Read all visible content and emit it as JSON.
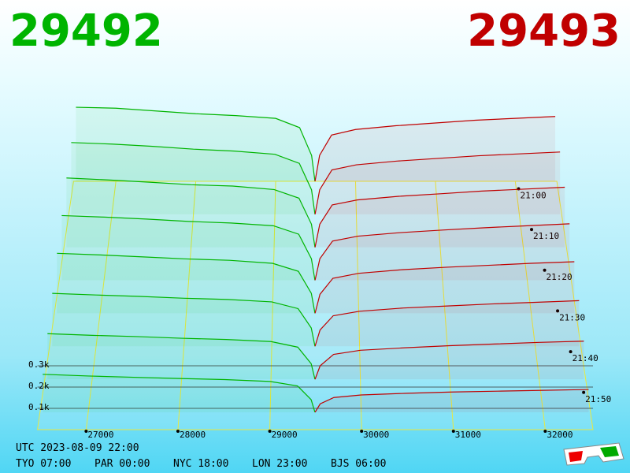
{
  "chart_data": {
    "type": "depth3d",
    "best_bid": 29492,
    "best_ask": 29493,
    "bid_color": "#00b400",
    "ask_color": "#c00000",
    "xlim": [
      26470,
      32520
    ],
    "xticks": [
      27000,
      28000,
      29000,
      30000,
      31000,
      32000
    ],
    "zticks": [
      {
        "value": 100,
        "label": "0.1k"
      },
      {
        "value": 200,
        "label": "0.2k"
      },
      {
        "value": 300,
        "label": "0.3k"
      }
    ],
    "time_ticks": [
      "21:00",
      "21:10",
      "21:20",
      "21:30",
      "21:40",
      "21:50"
    ],
    "bids": {
      "x": [
        26500,
        27000,
        27500,
        28000,
        28500,
        29000,
        29300,
        29450,
        29492
      ],
      "snapshots": [
        [
          400,
          395,
          380,
          365,
          355,
          340,
          290,
          140,
          0
        ],
        [
          380,
          372,
          360,
          345,
          335,
          318,
          270,
          130,
          0
        ],
        [
          360,
          350,
          338,
          325,
          318,
          300,
          255,
          120,
          0
        ],
        [
          330,
          322,
          312,
          300,
          292,
          278,
          235,
          110,
          0
        ],
        [
          300,
          292,
          282,
          272,
          265,
          250,
          210,
          100,
          0
        ],
        [
          260,
          252,
          245,
          236,
          230,
          218,
          185,
          90,
          0
        ],
        [
          220,
          212,
          206,
          198,
          192,
          182,
          155,
          75,
          0
        ],
        [
          180,
          172,
          166,
          160,
          155,
          146,
          125,
          60,
          0
        ]
      ]
    },
    "asks": {
      "x": [
        29493,
        29550,
        29700,
        30000,
        30500,
        31000,
        31500,
        32000,
        32500
      ],
      "snapshots": [
        [
          0,
          140,
          250,
          280,
          300,
          315,
          330,
          340,
          350
        ],
        [
          0,
          130,
          235,
          262,
          282,
          296,
          310,
          320,
          330
        ],
        [
          0,
          120,
          220,
          246,
          265,
          278,
          292,
          302,
          312
        ],
        [
          0,
          110,
          200,
          225,
          243,
          256,
          268,
          278,
          288
        ],
        [
          0,
          95,
          175,
          200,
          218,
          230,
          240,
          250,
          258
        ],
        [
          0,
          80,
          150,
          172,
          188,
          198,
          208,
          216,
          224
        ],
        [
          0,
          65,
          120,
          140,
          152,
          162,
          170,
          178,
          184
        ],
        [
          0,
          40,
          70,
          82,
          90,
          96,
          100,
          104,
          108
        ]
      ]
    },
    "footer": {
      "utc": "UTC 2023-08-09 22:00",
      "cities": [
        "TYO 07:00",
        "PAR 00:00",
        "NYC 18:00",
        "LON 23:00",
        "BJS 06:00"
      ]
    }
  }
}
